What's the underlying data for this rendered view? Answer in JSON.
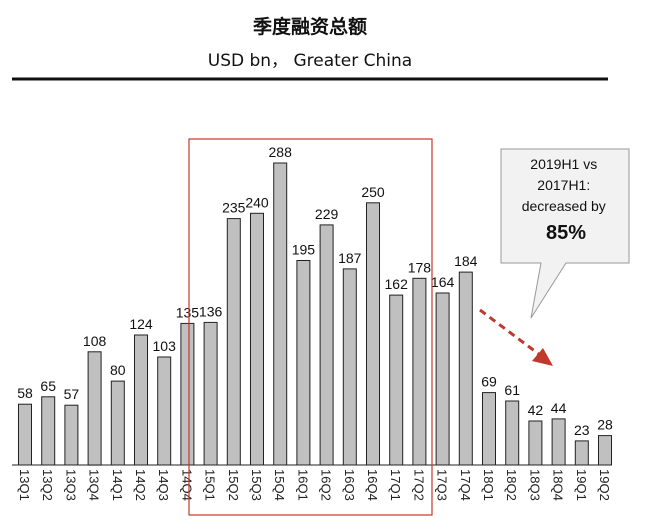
{
  "chart_data": {
    "type": "bar",
    "title": "季度融资总额",
    "subtitle": "USD bn， Greater China",
    "categories": [
      "13Q1",
      "13Q2",
      "13Q3",
      "13Q4",
      "14Q1",
      "14Q2",
      "14Q3",
      "14Q4",
      "15Q1",
      "15Q2",
      "15Q3",
      "15Q4",
      "16Q1",
      "16Q2",
      "16Q3",
      "16Q4",
      "17Q1",
      "17Q2",
      "17Q3",
      "17Q4",
      "18Q1",
      "18Q2",
      "18Q3",
      "18Q4",
      "19Q1",
      "19Q2"
    ],
    "values": [
      58,
      65,
      57,
      108,
      80,
      124,
      103,
      135,
      136,
      235,
      240,
      288,
      195,
      229,
      187,
      250,
      162,
      178,
      164,
      184,
      69,
      61,
      42,
      44,
      23,
      28
    ],
    "ylim": [
      0,
      288
    ],
    "highlight_range": [
      "14Q4",
      "17Q2"
    ],
    "annotation": {
      "line1": "2019H1 vs",
      "line2": "2017H1:",
      "line3": "decreased by",
      "value": "85%"
    },
    "colors": {
      "bar_fill": "#c0c0c0",
      "bar_stroke": "#222222",
      "highlight_box": "#c0392b",
      "arrow": "#c0392b",
      "callout_fill": "#f2f2f2",
      "callout_stroke": "#999999"
    }
  }
}
